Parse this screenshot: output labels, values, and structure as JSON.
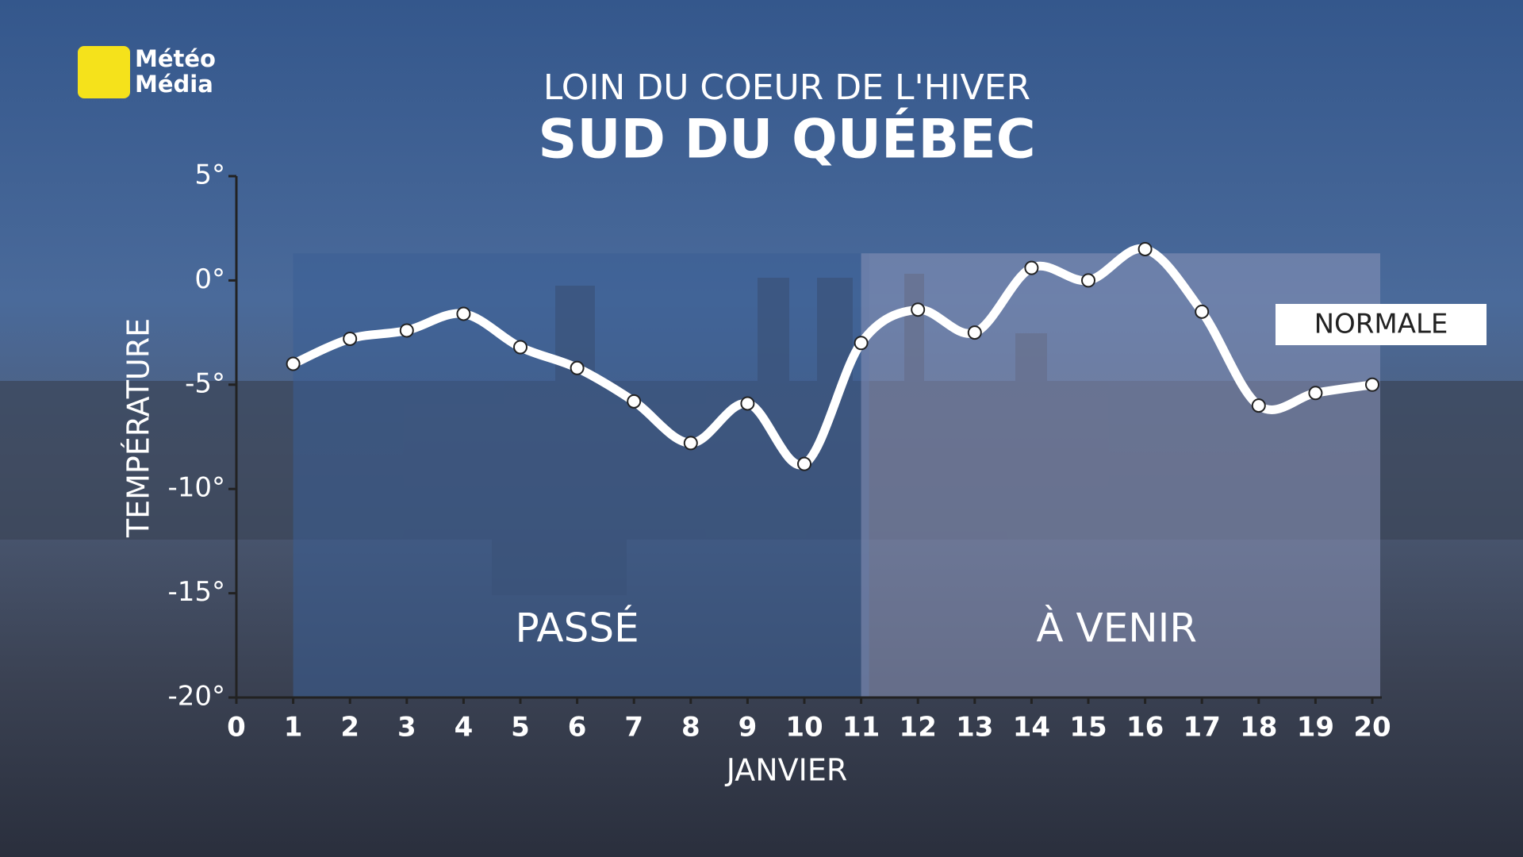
{
  "logo": [
    "Météo",
    "Média"
  ],
  "chart_data": {
    "type": "line",
    "title": "LOIN DU COEUR DE L'HIVER",
    "subtitle": "SUD DU QUÉBEC",
    "y_label": "TEMPÉRATURE",
    "x_label": "JANVIER",
    "x": [
      1,
      2,
      3,
      4,
      5,
      6,
      7,
      8,
      9,
      10,
      11,
      12,
      13,
      14,
      15,
      16,
      17,
      18,
      19,
      20
    ],
    "series": [
      {
        "name": "Température",
        "color": "#ffffff",
        "values": [
          -4,
          -2.8,
          -2.4,
          -1.6,
          -3.2,
          -4.2,
          -5.8,
          -7.8,
          -5.9,
          -8.8,
          -3,
          -1.4,
          -2.5,
          0.6,
          0,
          1.5,
          -1.5,
          -6,
          -5.4,
          -5
        ]
      }
    ],
    "xlim": [
      0,
      20
    ],
    "xticks": [
      0,
      1,
      2,
      3,
      4,
      5,
      6,
      7,
      8,
      9,
      10,
      11,
      12,
      13,
      14,
      15,
      16,
      17,
      18,
      19,
      20
    ],
    "ylim": [
      -20,
      5
    ],
    "yticks": [
      {
        "value": 5,
        "label": "5°"
      },
      {
        "value": 0,
        "label": "0°"
      },
      {
        "value": -5,
        "label": "-5°"
      },
      {
        "value": -10,
        "label": "-10°"
      },
      {
        "value": -15,
        "label": "-15°"
      },
      {
        "value": -20,
        "label": "-20°"
      }
    ],
    "regions": [
      {
        "label": "PASSÉ",
        "x": [
          1,
          11
        ],
        "color": "#3a5f96"
      },
      {
        "label": "À VENIR",
        "x": [
          11,
          20
        ],
        "color": "#8a93b8"
      }
    ],
    "annotations": [
      "NORMALE"
    ]
  }
}
